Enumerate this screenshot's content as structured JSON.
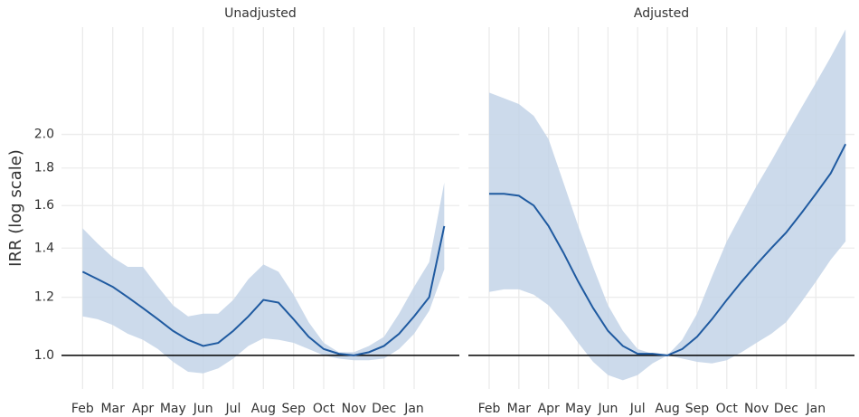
{
  "chart_data": [
    {
      "type": "line",
      "title": "Unadjusted",
      "ylabel": "IRR (log scale)",
      "log_scale": true,
      "grid": true,
      "hline": 1,
      "color": "#1f5aa0",
      "band_color": "#c3d3e7",
      "x": [
        1,
        1.5,
        2,
        2.5,
        3,
        3.5,
        4,
        4.5,
        5,
        5.5,
        6,
        6.5,
        7,
        7.5,
        8,
        8.5,
        9,
        9.5,
        10,
        10.5,
        11,
        11.5,
        12,
        12.5,
        13
      ],
      "values": [
        1.3,
        1.27,
        1.24,
        1.2,
        1.16,
        1.12,
        1.08,
        1.05,
        1.03,
        1.04,
        1.08,
        1.13,
        1.19,
        1.18,
        1.12,
        1.06,
        1.02,
        1.005,
        1.0,
        1.01,
        1.03,
        1.07,
        1.13,
        1.2,
        1.5
      ],
      "lower": [
        1.13,
        1.12,
        1.1,
        1.07,
        1.05,
        1.02,
        0.98,
        0.95,
        0.945,
        0.96,
        0.99,
        1.03,
        1.055,
        1.05,
        1.04,
        1.02,
        1.0,
        0.99,
        0.985,
        0.985,
        0.99,
        1.02,
        1.07,
        1.15,
        1.31
      ],
      "upper": [
        1.49,
        1.42,
        1.36,
        1.32,
        1.32,
        1.24,
        1.17,
        1.13,
        1.14,
        1.14,
        1.19,
        1.27,
        1.33,
        1.3,
        1.21,
        1.11,
        1.04,
        1.01,
        1.01,
        1.03,
        1.06,
        1.14,
        1.24,
        1.34,
        1.72
      ],
      "xlim": [
        0.3,
        13.5
      ],
      "xticks": [
        {
          "value": 1,
          "label": "Feb"
        },
        {
          "value": 2,
          "label": "Mar"
        },
        {
          "value": 3,
          "label": "Apr"
        },
        {
          "value": 4,
          "label": "May"
        },
        {
          "value": 5,
          "label": "Jun"
        },
        {
          "value": 6,
          "label": "Jul"
        },
        {
          "value": 7,
          "label": "Aug"
        },
        {
          "value": 8,
          "label": "Sep"
        },
        {
          "value": 9,
          "label": "Oct"
        },
        {
          "value": 10,
          "label": "Nov"
        },
        {
          "value": 11,
          "label": "Dec"
        },
        {
          "value": 12,
          "label": "Jan"
        }
      ],
      "ylim": [
        0.9,
        2.8
      ],
      "yticks": [
        {
          "value": 1,
          "label": "1.0"
        },
        1.2,
        1.4,
        1.6,
        1.8,
        {
          "value": 2,
          "label": "2.0"
        }
      ]
    },
    {
      "type": "line",
      "title": "Adjusted",
      "log_scale": true,
      "grid": true,
      "hline": 1,
      "color": "#1f5aa0",
      "band_color": "#c3d3e7",
      "x": [
        1,
        1.5,
        2,
        2.5,
        3,
        3.5,
        4,
        4.5,
        5,
        5.5,
        6,
        6.5,
        7,
        7.5,
        8,
        8.5,
        9,
        9.5,
        10,
        10.5,
        11,
        11.5,
        12,
        12.5,
        13
      ],
      "values": [
        1.66,
        1.66,
        1.65,
        1.6,
        1.5,
        1.38,
        1.26,
        1.16,
        1.08,
        1.03,
        1.005,
        1.005,
        1.0,
        1.02,
        1.06,
        1.12,
        1.19,
        1.26,
        1.33,
        1.4,
        1.47,
        1.56,
        1.66,
        1.77,
        1.94
      ],
      "lower": [
        1.22,
        1.23,
        1.23,
        1.21,
        1.17,
        1.11,
        1.04,
        0.98,
        0.94,
        0.925,
        0.94,
        0.975,
        1.0,
        0.99,
        0.98,
        0.975,
        0.985,
        1.01,
        1.04,
        1.07,
        1.11,
        1.18,
        1.26,
        1.35,
        1.43
      ],
      "upper": [
        2.28,
        2.24,
        2.2,
        2.12,
        1.97,
        1.72,
        1.5,
        1.32,
        1.17,
        1.08,
        1.02,
        1.005,
        1.0,
        1.05,
        1.14,
        1.28,
        1.43,
        1.56,
        1.7,
        1.84,
        2.0,
        2.17,
        2.35,
        2.55,
        2.78
      ],
      "xlim": [
        0.3,
        13.3
      ],
      "xticks": [
        {
          "value": 1,
          "label": "Feb"
        },
        {
          "value": 2,
          "label": "Mar"
        },
        {
          "value": 3,
          "label": "Apr"
        },
        {
          "value": 4,
          "label": "May"
        },
        {
          "value": 5,
          "label": "Jun"
        },
        {
          "value": 6,
          "label": "Jul"
        },
        {
          "value": 7,
          "label": "Aug"
        },
        {
          "value": 8,
          "label": "Sep"
        },
        {
          "value": 9,
          "label": "Oct"
        },
        {
          "value": 10,
          "label": "Nov"
        },
        {
          "value": 11,
          "label": "Dec"
        },
        {
          "value": 12,
          "label": "Jan"
        }
      ],
      "ylim": [
        0.9,
        2.8
      ],
      "yticks": [
        {
          "value": 1,
          "label": "1.0"
        },
        1.2,
        1.4,
        1.6,
        1.8,
        {
          "value": 2,
          "label": "2.0"
        }
      ]
    }
  ]
}
